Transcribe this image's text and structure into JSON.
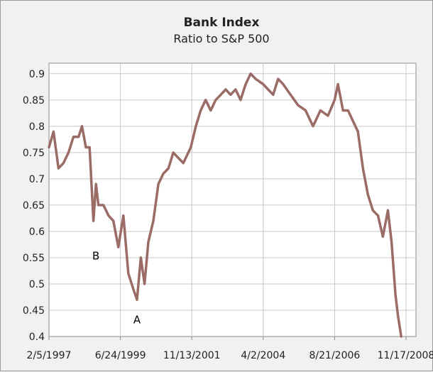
{
  "chart_data": {
    "type": "line",
    "title": "Bank Index",
    "subtitle": "Ratio to S&P 500",
    "xlabel": "",
    "ylabel": "",
    "x_tick_labels": [
      "2/5/1997",
      "6/24/1999",
      "11/13/2001",
      "4/2/2004",
      "8/21/2006",
      "11/17/2008"
    ],
    "x_range": [
      "1997-02-05",
      "2008-11-17"
    ],
    "ylim": [
      0.4,
      0.92
    ],
    "y_ticks": [
      0.4,
      0.45,
      0.5,
      0.55,
      0.6,
      0.65,
      0.7,
      0.75,
      0.8,
      0.85,
      0.9
    ],
    "y_tick_labels": [
      "0.4",
      "0.45",
      "0.5",
      "0.55",
      "0.6",
      "0.65",
      "0.7",
      "0.75",
      "0.8",
      "0.85",
      "0.9"
    ],
    "grid": true,
    "line_color": "#9b6b65",
    "series": [
      {
        "x": [
          "1997-02-05",
          "1997-04-01",
          "1997-06-01",
          "1997-08-01",
          "1997-10-01",
          "1997-12-01",
          "1998-02-01",
          "1998-03-15",
          "1998-05-01",
          "1998-06-15",
          "1998-08-01",
          "1998-09-01",
          "1998-10-01",
          "1998-12-01",
          "1999-02-01",
          "1999-04-01",
          "1999-06-01",
          "1999-08-01",
          "1999-10-01",
          "1999-12-01",
          "2000-01-15",
          "2000-03-01",
          "2000-04-15",
          "2000-06-01",
          "2000-08-01",
          "2000-10-01",
          "2000-12-01",
          "2001-02-01",
          "2001-04-01",
          "2001-06-01",
          "2001-08-01",
          "2001-11-01",
          "2002-01-01",
          "2002-03-01",
          "2002-05-01",
          "2002-07-01",
          "2002-09-01",
          "2002-11-01",
          "2003-01-01",
          "2003-03-01",
          "2003-05-01",
          "2003-07-01",
          "2003-09-01",
          "2003-11-01",
          "2004-01-01",
          "2004-04-01",
          "2004-06-01",
          "2004-08-01",
          "2004-10-01",
          "2004-12-01",
          "2005-03-01",
          "2005-06-01",
          "2005-09-01",
          "2005-12-01",
          "2006-03-01",
          "2006-06-01",
          "2006-08-21",
          "2006-10-01",
          "2006-12-01",
          "2007-02-01",
          "2007-04-01",
          "2007-06-01",
          "2007-08-01",
          "2007-10-01",
          "2007-12-01",
          "2008-02-01",
          "2008-04-01",
          "2008-06-01",
          "2008-07-15",
          "2008-09-01",
          "2008-10-01",
          "2008-11-10"
        ],
        "values": [
          0.76,
          0.79,
          0.72,
          0.73,
          0.75,
          0.78,
          0.78,
          0.8,
          0.76,
          0.76,
          0.62,
          0.69,
          0.65,
          0.65,
          0.63,
          0.62,
          0.57,
          0.63,
          0.52,
          0.49,
          0.47,
          0.55,
          0.5,
          0.58,
          0.62,
          0.69,
          0.71,
          0.72,
          0.75,
          0.74,
          0.73,
          0.76,
          0.8,
          0.83,
          0.85,
          0.83,
          0.85,
          0.86,
          0.87,
          0.86,
          0.87,
          0.85,
          0.88,
          0.9,
          0.89,
          0.88,
          0.87,
          0.86,
          0.89,
          0.88,
          0.86,
          0.84,
          0.83,
          0.8,
          0.83,
          0.82,
          0.85,
          0.88,
          0.83,
          0.83,
          0.81,
          0.79,
          0.72,
          0.67,
          0.64,
          0.63,
          0.59,
          0.64,
          0.58,
          0.48,
          0.44,
          0.4
        ]
      }
    ],
    "annotations": [
      {
        "text": "B",
        "date": "1998-09-01",
        "y": 0.553
      },
      {
        "text": "A",
        "date": "2000-01-15",
        "y": 0.432
      }
    ]
  }
}
